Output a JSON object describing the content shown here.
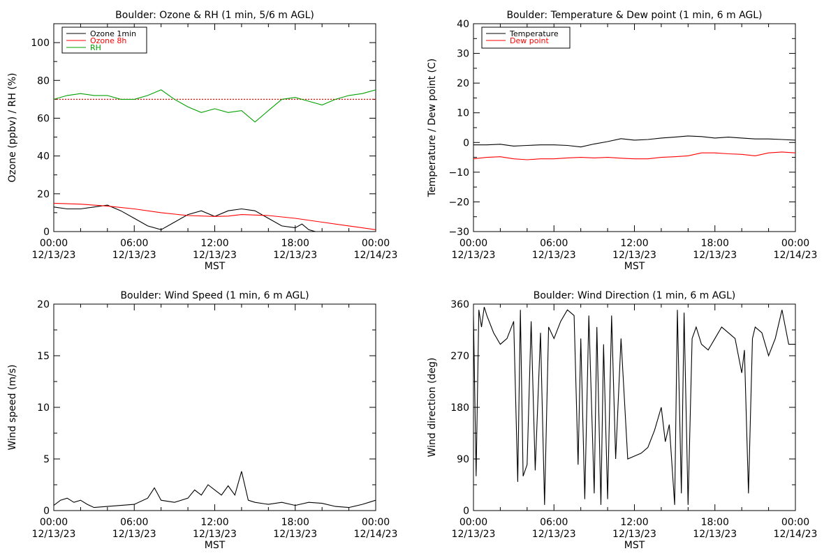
{
  "chart_data": [
    {
      "type": "line",
      "title": "Boulder: Ozone & RH (1 min, 5/6 m AGL)",
      "xlabel": "MST",
      "ylabel": "Ozone (ppbv) / RH (%)",
      "x_ticks": [
        {
          "time": "00:00",
          "date": "12/13/23"
        },
        {
          "time": "06:00",
          "date": "12/13/23"
        },
        {
          "time": "12:00",
          "date": "12/13/23"
        },
        {
          "time": "18:00",
          "date": "12/13/23"
        },
        {
          "time": "00:00",
          "date": "12/14/23"
        }
      ],
      "xlim_hours": [
        0,
        24
      ],
      "ylim": [
        0,
        110
      ],
      "y_ticks": [
        "0",
        "20",
        "40",
        "60",
        "80",
        "100"
      ],
      "y_tick_values": [
        0,
        20,
        40,
        60,
        80,
        100
      ],
      "legend_position": "top-left",
      "reference_line": {
        "value": 70,
        "color": "#ff0000",
        "style": "dotted"
      },
      "series": [
        {
          "name": "Ozone 1min",
          "color": "#000000",
          "hours": [
            0,
            1,
            2,
            3,
            4,
            5,
            6,
            7,
            8,
            9,
            10,
            11,
            12,
            13,
            14,
            15,
            16,
            17,
            18,
            18.5,
            19,
            19.5,
            20,
            21,
            22,
            23,
            24
          ],
          "values": [
            13,
            12,
            12,
            13,
            14,
            11,
            7,
            3,
            1,
            5,
            9,
            11,
            8,
            11,
            12,
            11,
            7,
            3,
            2,
            4,
            1,
            0,
            0,
            0,
            0,
            0,
            0
          ]
        },
        {
          "name": "Ozone 8h",
          "color": "#ff0000",
          "hours": [
            0,
            2,
            4,
            6,
            8,
            10,
            12,
            13,
            14,
            16,
            18,
            20,
            22,
            24
          ],
          "values": [
            15,
            14.5,
            13.5,
            12,
            10,
            8.5,
            8,
            8.2,
            9,
            8.5,
            7,
            5,
            3,
            1
          ]
        },
        {
          "name": "RH",
          "color": "#00a000",
          "hours": [
            0,
            1,
            2,
            3,
            4,
            5,
            6,
            7,
            8,
            9,
            10,
            11,
            12,
            13,
            14,
            15,
            16,
            17,
            18,
            19,
            20,
            21,
            22,
            23,
            24
          ],
          "values": [
            70,
            72,
            73,
            72,
            72,
            70,
            70,
            72,
            75,
            70,
            66,
            63,
            65,
            63,
            64,
            58,
            64,
            70,
            71,
            69,
            67,
            70,
            72,
            73,
            75
          ]
        }
      ]
    },
    {
      "type": "line",
      "title": "Boulder: Temperature & Dew point (1 min, 6 m AGL)",
      "xlabel": "MST",
      "ylabel": "Temperature / Dew point (C)",
      "x_ticks": [
        {
          "time": "00:00",
          "date": "12/13/23"
        },
        {
          "time": "06:00",
          "date": "12/13/23"
        },
        {
          "time": "12:00",
          "date": "12/13/23"
        },
        {
          "time": "18:00",
          "date": "12/13/23"
        },
        {
          "time": "00:00",
          "date": "12/14/23"
        }
      ],
      "xlim_hours": [
        0,
        24
      ],
      "ylim": [
        -30,
        40
      ],
      "y_ticks": [
        "−30",
        "−20",
        "−10",
        "0",
        "10",
        "20",
        "30",
        "40"
      ],
      "y_tick_values": [
        -30,
        -20,
        -10,
        0,
        10,
        20,
        30,
        40
      ],
      "legend_position": "top-left",
      "series": [
        {
          "name": "Temperature",
          "color": "#000000",
          "hours": [
            0,
            1,
            2,
            3,
            4,
            5,
            6,
            7,
            8,
            9,
            10,
            11,
            12,
            13,
            14,
            15,
            16,
            17,
            18,
            19,
            20,
            21,
            22,
            23,
            24
          ],
          "values": [
            -0.8,
            -0.8,
            -0.6,
            -1.2,
            -1,
            -0.8,
            -0.8,
            -1,
            -1.5,
            -0.5,
            0.3,
            1.3,
            0.8,
            1,
            1.5,
            1.8,
            2.2,
            2,
            1.5,
            1.8,
            1.5,
            1.2,
            1.2,
            1,
            0.8
          ]
        },
        {
          "name": "Dew point",
          "color": "#ff0000",
          "hours": [
            0,
            1,
            2,
            3,
            4,
            5,
            6,
            7,
            8,
            9,
            10,
            11,
            12,
            13,
            14,
            15,
            16,
            17,
            18,
            19,
            20,
            21,
            22,
            23,
            24
          ],
          "values": [
            -5.5,
            -5,
            -4.8,
            -5.5,
            -5.8,
            -5.5,
            -5.5,
            -5.2,
            -5,
            -5.2,
            -5,
            -5.3,
            -5.5,
            -5.5,
            -5,
            -4.8,
            -4.5,
            -3.5,
            -3.5,
            -3.8,
            -4,
            -4.5,
            -3.5,
            -3.2,
            -3.5
          ]
        }
      ]
    },
    {
      "type": "line",
      "title": "Boulder: Wind Speed (1 min, 6 m AGL)",
      "xlabel": "MST",
      "ylabel": "Wind speed (m/s)",
      "x_ticks": [
        {
          "time": "00:00",
          "date": "12/13/23"
        },
        {
          "time": "06:00",
          "date": "12/13/23"
        },
        {
          "time": "12:00",
          "date": "12/13/23"
        },
        {
          "time": "18:00",
          "date": "12/13/23"
        },
        {
          "time": "00:00",
          "date": "12/14/23"
        }
      ],
      "xlim_hours": [
        0,
        24
      ],
      "ylim": [
        0,
        20
      ],
      "y_ticks": [
        "0",
        "5",
        "10",
        "15",
        "20"
      ],
      "y_tick_values": [
        0,
        5,
        10,
        15,
        20
      ],
      "series": [
        {
          "color": "#000000",
          "hours": [
            0,
            0.5,
            1,
            1.5,
            2,
            2.5,
            3,
            4,
            5,
            6,
            7,
            7.5,
            8,
            9,
            10,
            10.5,
            11,
            11.5,
            12,
            12.5,
            13,
            13.5,
            14,
            14.5,
            15,
            16,
            17,
            18,
            19,
            20,
            21,
            22,
            23,
            23.5,
            24
          ],
          "values": [
            0.5,
            1,
            1.2,
            0.8,
            1,
            0.6,
            0.3,
            0.4,
            0.5,
            0.6,
            1.2,
            2.2,
            1,
            0.8,
            1.2,
            2,
            1.5,
            2.5,
            2,
            1.5,
            2.4,
            1.5,
            3.8,
            1,
            0.8,
            0.6,
            0.8,
            0.5,
            0.8,
            0.7,
            0.4,
            0.3,
            0.6,
            0.8,
            1
          ]
        }
      ]
    },
    {
      "type": "line",
      "title": "Boulder: Wind Direction (1 min, 6 m AGL)",
      "xlabel": "MST",
      "ylabel": "Wind direction (deg)",
      "x_ticks": [
        {
          "time": "00:00",
          "date": "12/13/23"
        },
        {
          "time": "06:00",
          "date": "12/13/23"
        },
        {
          "time": "12:00",
          "date": "12/13/23"
        },
        {
          "time": "18:00",
          "date": "12/13/23"
        },
        {
          "time": "00:00",
          "date": "12/14/23"
        }
      ],
      "xlim_hours": [
        0,
        24
      ],
      "ylim": [
        0,
        360
      ],
      "y_ticks": [
        "0",
        "90",
        "180",
        "270",
        "360"
      ],
      "y_tick_values": [
        0,
        90,
        180,
        270,
        360
      ],
      "series": [
        {
          "color": "#000000",
          "hours": [
            0,
            0.2,
            0.4,
            0.6,
            0.8,
            1,
            1.5,
            2,
            2.5,
            3,
            3.3,
            3.5,
            3.7,
            4,
            4.3,
            4.6,
            5,
            5.3,
            5.6,
            6,
            6.5,
            7,
            7.5,
            7.8,
            8,
            8.3,
            8.6,
            9,
            9.2,
            9.5,
            9.7,
            10,
            10.3,
            10.6,
            11,
            11.5,
            12,
            12.5,
            13,
            13.5,
            14,
            14.3,
            14.6,
            15,
            15.2,
            15.5,
            15.7,
            16,
            16.3,
            16.6,
            17,
            17.5,
            18,
            18.5,
            19,
            19.5,
            20,
            20.2,
            20.5,
            20.8,
            21,
            21.5,
            22,
            22.5,
            23,
            23.5,
            24
          ],
          "values": [
            340,
            60,
            350,
            320,
            355,
            340,
            310,
            290,
            300,
            330,
            50,
            350,
            60,
            80,
            330,
            70,
            310,
            10,
            320,
            300,
            330,
            350,
            340,
            80,
            300,
            20,
            340,
            30,
            320,
            10,
            290,
            20,
            340,
            90,
            300,
            90,
            95,
            100,
            110,
            140,
            180,
            120,
            150,
            10,
            350,
            30,
            345,
            10,
            300,
            320,
            290,
            280,
            300,
            320,
            310,
            300,
            240,
            280,
            30,
            300,
            320,
            310,
            270,
            300,
            350,
            290,
            290
          ]
        }
      ]
    }
  ]
}
